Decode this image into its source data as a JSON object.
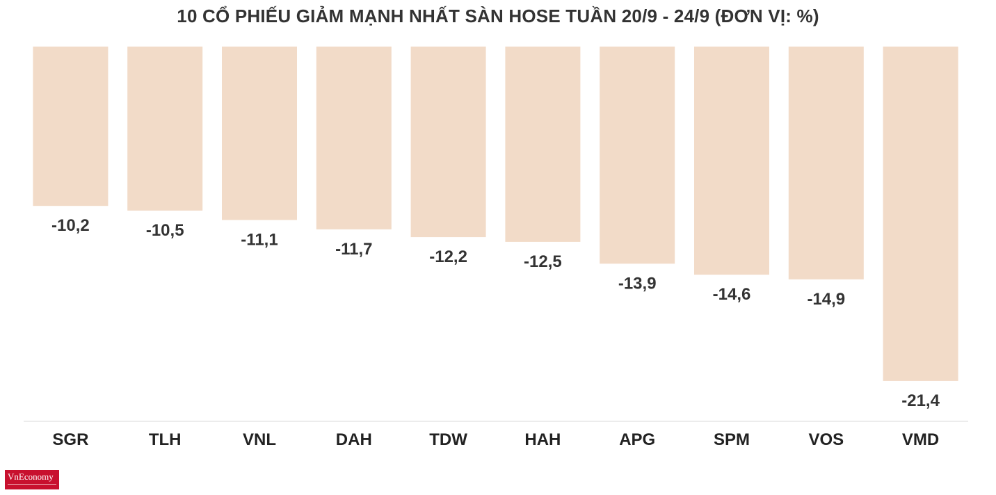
{
  "chart_data": {
    "type": "bar",
    "title": "10 CỔ PHIẾU GIẢM MẠNH NHẤT SÀN HOSE TUẦN 20/9 - 24/9 (ĐƠN VỊ: %)",
    "categories": [
      "SGR",
      "TLH",
      "VNL",
      "DAH",
      "TDW",
      "HAH",
      "APG",
      "SPM",
      "VOS",
      "VMD"
    ],
    "values": [
      -10.2,
      -10.5,
      -11.1,
      -11.7,
      -12.2,
      -12.5,
      -13.9,
      -14.6,
      -14.9,
      -21.4
    ],
    "value_labels": [
      "-10,2",
      "-10,5",
      "-11,1",
      "-11,7",
      "-12,2",
      "-12,5",
      "-13,9",
      "-14,6",
      "-14,9",
      "-21,4"
    ],
    "bar_color": "#f2dbc8",
    "baseline_color": "#e6e6e6",
    "grid": false,
    "legend": "none"
  },
  "logo": {
    "text": "VnEconomy",
    "color": "#c8102e"
  }
}
